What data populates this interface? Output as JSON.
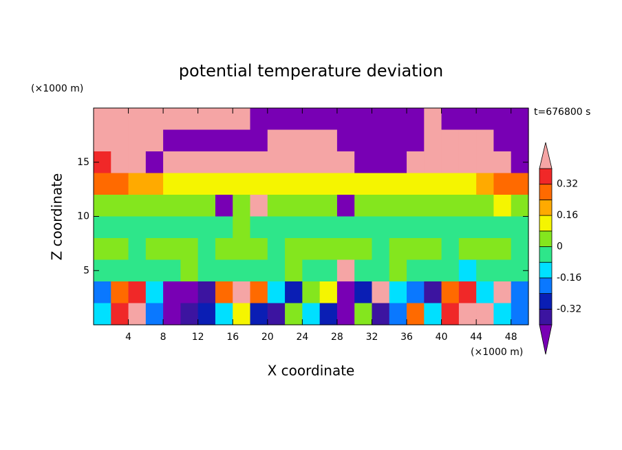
{
  "chart_data": {
    "type": "contour",
    "title": "potential temperature deviation",
    "subtitle": "t=676800 s",
    "x_label": "X coordinate",
    "y_label": "Z coordinate",
    "x_unit": "(×1000 m)",
    "y_unit": "(×1000 m)",
    "xlim": [
      0,
      50
    ],
    "ylim": [
      0,
      20
    ],
    "xticks": [
      4,
      8,
      12,
      16,
      20,
      24,
      28,
      32,
      36,
      40,
      44,
      48
    ],
    "yticks": [
      5,
      10,
      15
    ],
    "x": [
      1,
      3,
      5,
      7,
      9,
      11,
      13,
      15,
      17,
      19,
      21,
      23,
      25,
      27,
      29,
      31,
      33,
      35,
      37,
      39,
      41,
      43,
      45,
      47,
      49
    ],
    "y": [
      19,
      17,
      15,
      13,
      11,
      9,
      7,
      5,
      3,
      1
    ],
    "z": [
      [
        0.5,
        0.5,
        0.5,
        0.5,
        0.5,
        0.5,
        0.5,
        0.5,
        0.5,
        -0.5,
        -0.5,
        -0.5,
        -0.5,
        -0.5,
        -0.5,
        -0.5,
        -0.5,
        -0.5,
        -0.5,
        0.5,
        -0.5,
        -0.5,
        -0.5,
        -0.5,
        -0.5
      ],
      [
        0.5,
        0.5,
        0.5,
        0.5,
        -0.5,
        -0.5,
        -0.5,
        -0.5,
        -0.5,
        -0.5,
        0.5,
        0.5,
        0.5,
        0.5,
        -0.5,
        -0.5,
        -0.5,
        -0.5,
        -0.5,
        0.5,
        0.5,
        0.5,
        0.5,
        -0.5,
        -0.5
      ],
      [
        0.36,
        0.5,
        0.5,
        -0.5,
        0.5,
        0.5,
        0.5,
        0.5,
        0.5,
        0.5,
        0.5,
        0.5,
        0.5,
        0.5,
        0.5,
        -0.5,
        -0.5,
        -0.5,
        0.5,
        0.5,
        0.5,
        0.5,
        0.5,
        0.5,
        -0.5
      ],
      [
        0.28,
        0.28,
        0.2,
        0.2,
        0.12,
        0.12,
        0.12,
        0.12,
        0.12,
        0.12,
        0.12,
        0.12,
        0.12,
        0.12,
        0.12,
        0.12,
        0.12,
        0.12,
        0.12,
        0.12,
        0.12,
        0.12,
        0.2,
        0.28,
        0.28
      ],
      [
        0.04,
        0.04,
        0.04,
        0.04,
        0.04,
        0.04,
        0.04,
        -0.5,
        0.04,
        0.5,
        0.04,
        0.04,
        0.04,
        0.04,
        -0.5,
        0.04,
        0.04,
        0.04,
        0.04,
        0.04,
        0.04,
        0.04,
        0.04,
        0.12,
        0.04
      ],
      [
        -0.04,
        -0.04,
        -0.04,
        -0.04,
        -0.04,
        -0.04,
        -0.04,
        -0.04,
        0.04,
        -0.04,
        -0.04,
        -0.04,
        -0.04,
        -0.04,
        -0.04,
        -0.04,
        -0.04,
        -0.04,
        -0.04,
        -0.04,
        -0.04,
        -0.04,
        -0.04,
        -0.04,
        -0.04
      ],
      [
        0.04,
        0.04,
        -0.04,
        0.04,
        0.04,
        0.04,
        -0.04,
        0.04,
        0.04,
        0.04,
        -0.04,
        0.04,
        0.04,
        0.04,
        0.04,
        0.04,
        -0.04,
        0.04,
        0.04,
        0.04,
        -0.04,
        0.04,
        0.04,
        0.04,
        -0.04
      ],
      [
        -0.04,
        -0.04,
        -0.04,
        -0.04,
        -0.04,
        0.04,
        -0.04,
        -0.04,
        -0.04,
        -0.04,
        -0.04,
        0.04,
        -0.04,
        -0.04,
        0.5,
        -0.04,
        -0.04,
        0.04,
        -0.04,
        -0.04,
        -0.04,
        -0.12,
        -0.04,
        -0.04,
        -0.04
      ],
      [
        -0.2,
        0.28,
        0.36,
        -0.12,
        -0.5,
        -0.5,
        -0.36,
        0.28,
        0.5,
        0.28,
        -0.12,
        -0.28,
        0.04,
        0.12,
        -0.5,
        -0.28,
        0.5,
        -0.12,
        -0.2,
        -0.36,
        0.28,
        0.36,
        -0.12,
        0.5,
        -0.2
      ],
      [
        -0.12,
        0.36,
        0.5,
        -0.2,
        -0.5,
        -0.36,
        -0.28,
        -0.12,
        0.12,
        -0.28,
        -0.36,
        0.04,
        -0.12,
        -0.28,
        -0.5,
        0.04,
        -0.36,
        -0.2,
        0.28,
        -0.12,
        0.36,
        0.5,
        0.5,
        -0.12,
        -0.2
      ]
    ],
    "colorbar": {
      "levels": [
        -0.4,
        -0.32,
        -0.24,
        -0.16,
        -0.08,
        0,
        0.08,
        0.16,
        0.24,
        0.32,
        0.4
      ],
      "ticks": [
        -0.32,
        -0.16,
        0,
        0.16,
        0.32
      ],
      "colors": [
        "#7800b4",
        "#3c14a0",
        "#0a1eb4",
        "#0a78ff",
        "#00e0ff",
        "#2ee68a",
        "#84e61e",
        "#f5f500",
        "#ffaa00",
        "#ff6a00",
        "#f02828",
        "#f5a5a5"
      ]
    }
  }
}
